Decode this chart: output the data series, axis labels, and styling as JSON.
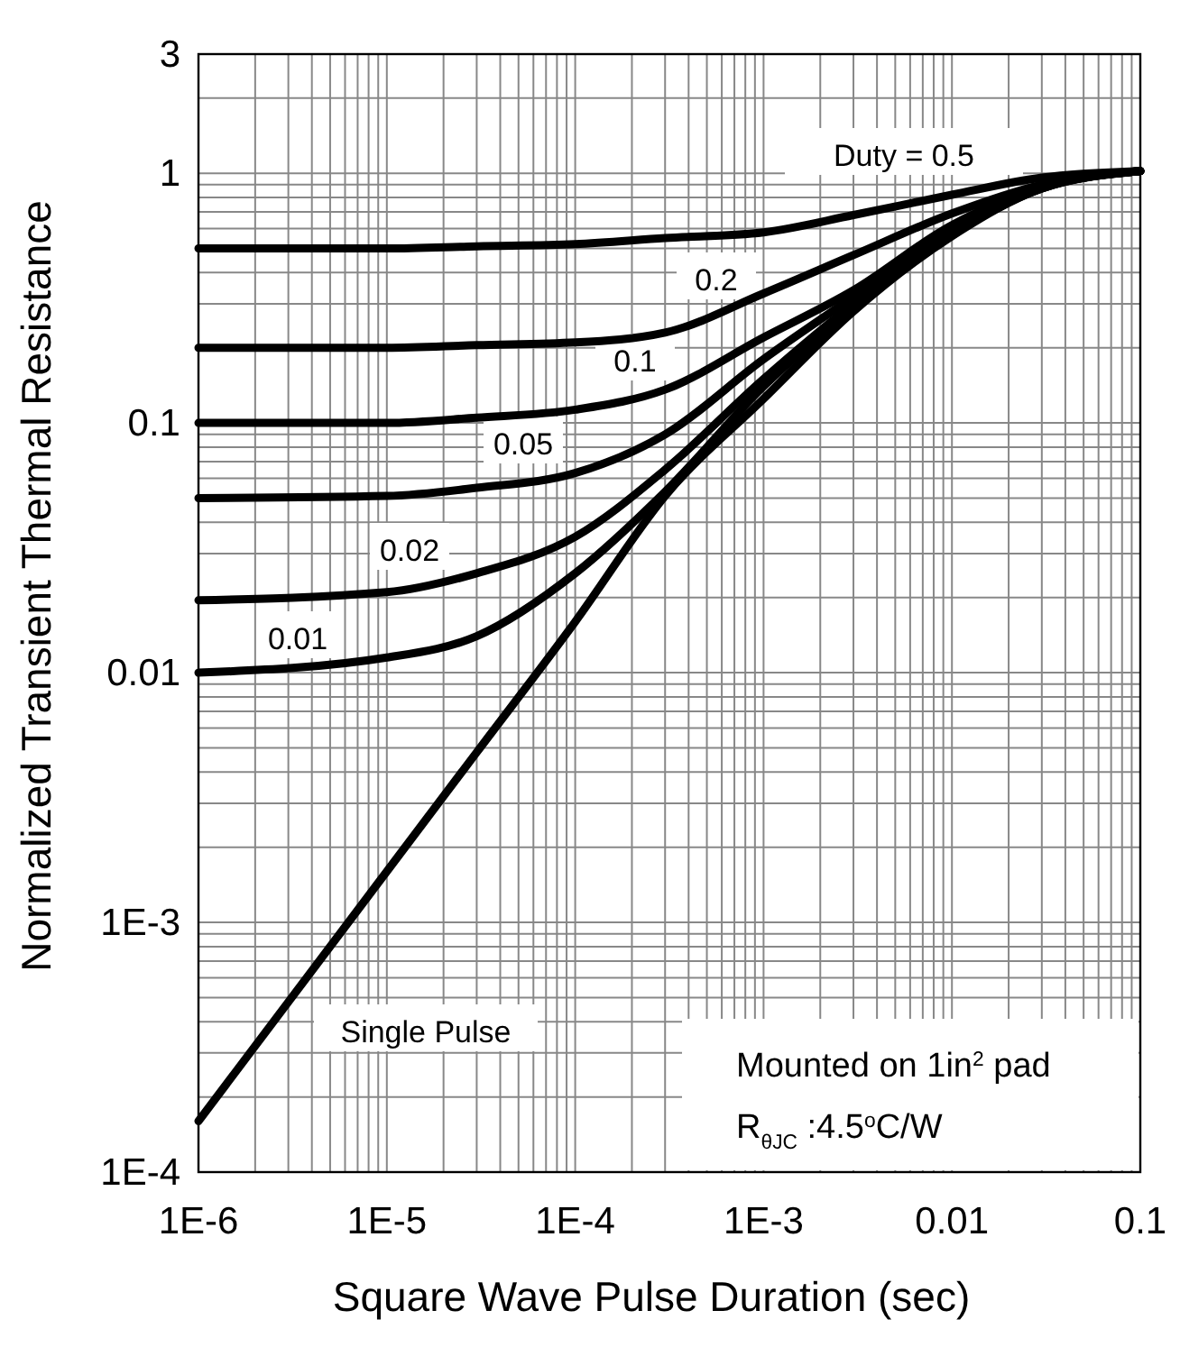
{
  "chart_data": {
    "type": "line",
    "xlabel": "Square Wave Pulse Duration (sec)",
    "ylabel": "Normalized Transient Thermal Resistance",
    "log": "xy",
    "grid": true,
    "line_style": "solid",
    "xlim": [
      1e-06,
      0.1
    ],
    "ylim": [
      0.0001,
      3
    ],
    "xticks": [
      {
        "value": 1e-06,
        "label": "1E-6"
      },
      {
        "value": 2e-06,
        "label": null
      },
      {
        "value": 3e-06,
        "label": null
      },
      {
        "value": 4e-06,
        "label": null
      },
      {
        "value": 5e-06,
        "label": null
      },
      {
        "value": 6e-06,
        "label": null
      },
      {
        "value": 7e-06,
        "label": null
      },
      {
        "value": 8e-06,
        "label": null
      },
      {
        "value": 9e-06,
        "label": null
      },
      {
        "value": 1e-05,
        "label": "1E-5"
      },
      {
        "value": 2e-05,
        "label": null
      },
      {
        "value": 3e-05,
        "label": null
      },
      {
        "value": 4e-05,
        "label": null
      },
      {
        "value": 5e-05,
        "label": null
      },
      {
        "value": 6e-05,
        "label": null
      },
      {
        "value": 7e-05,
        "label": null
      },
      {
        "value": 8e-05,
        "label": null
      },
      {
        "value": 9e-05,
        "label": null
      },
      {
        "value": 0.0001,
        "label": "1E-4"
      },
      {
        "value": 0.0002,
        "label": null
      },
      {
        "value": 0.0003,
        "label": null
      },
      {
        "value": 0.0004,
        "label": null
      },
      {
        "value": 0.0005,
        "label": null
      },
      {
        "value": 0.0006,
        "label": null
      },
      {
        "value": 0.0007,
        "label": null
      },
      {
        "value": 0.0008,
        "label": null
      },
      {
        "value": 0.0009,
        "label": null
      },
      {
        "value": 0.001,
        "label": "1E-3"
      },
      {
        "value": 0.002,
        "label": null
      },
      {
        "value": 0.003,
        "label": null
      },
      {
        "value": 0.004,
        "label": null
      },
      {
        "value": 0.005,
        "label": null
      },
      {
        "value": 0.006,
        "label": null
      },
      {
        "value": 0.007,
        "label": null
      },
      {
        "value": 0.008,
        "label": null
      },
      {
        "value": 0.009,
        "label": null
      },
      {
        "value": 0.01,
        "label": "0.01"
      },
      {
        "value": 0.02,
        "label": null
      },
      {
        "value": 0.03,
        "label": null
      },
      {
        "value": 0.04,
        "label": null
      },
      {
        "value": 0.05,
        "label": null
      },
      {
        "value": 0.06,
        "label": null
      },
      {
        "value": 0.07,
        "label": null
      },
      {
        "value": 0.08,
        "label": null
      },
      {
        "value": 0.09,
        "label": null
      },
      {
        "value": 0.1,
        "label": "0.1"
      }
    ],
    "yticks": [
      {
        "value": 0.0001,
        "label": "1E-4"
      },
      {
        "value": 0.0002,
        "label": null
      },
      {
        "value": 0.0003,
        "label": null
      },
      {
        "value": 0.0004,
        "label": null
      },
      {
        "value": 0.0005,
        "label": null
      },
      {
        "value": 0.0006,
        "label": null
      },
      {
        "value": 0.0007,
        "label": null
      },
      {
        "value": 0.0008,
        "label": null
      },
      {
        "value": 0.0009,
        "label": null
      },
      {
        "value": 0.001,
        "label": "1E-3"
      },
      {
        "value": 0.002,
        "label": null
      },
      {
        "value": 0.003,
        "label": null
      },
      {
        "value": 0.004,
        "label": null
      },
      {
        "value": 0.005,
        "label": null
      },
      {
        "value": 0.006,
        "label": null
      },
      {
        "value": 0.007,
        "label": null
      },
      {
        "value": 0.008,
        "label": null
      },
      {
        "value": 0.009,
        "label": null
      },
      {
        "value": 0.01,
        "label": "0.01"
      },
      {
        "value": 0.02,
        "label": null
      },
      {
        "value": 0.03,
        "label": null
      },
      {
        "value": 0.04,
        "label": null
      },
      {
        "value": 0.05,
        "label": null
      },
      {
        "value": 0.06,
        "label": null
      },
      {
        "value": 0.07,
        "label": null
      },
      {
        "value": 0.08,
        "label": null
      },
      {
        "value": 0.09,
        "label": null
      },
      {
        "value": 0.1,
        "label": "0.1"
      },
      {
        "value": 0.2,
        "label": null
      },
      {
        "value": 0.3,
        "label": null
      },
      {
        "value": 0.4,
        "label": null
      },
      {
        "value": 0.5,
        "label": null
      },
      {
        "value": 0.6,
        "label": null
      },
      {
        "value": 0.7,
        "label": null
      },
      {
        "value": 0.8,
        "label": null
      },
      {
        "value": 0.9,
        "label": null
      },
      {
        "value": 1,
        "label": "1"
      },
      {
        "value": 2,
        "label": null
      },
      {
        "value": 3,
        "label": "3"
      }
    ],
    "x": [
      1e-06,
      1e-05,
      3e-05,
      0.0001,
      0.0003,
      0.001,
      0.003,
      0.01,
      0.03,
      0.1
    ],
    "series": [
      {
        "name": "Duty = 0.5",
        "color": "#000000",
        "values": [
          0.5,
          0.5,
          0.51,
          0.52,
          0.55,
          0.58,
          0.68,
          0.82,
          0.96,
          1.02
        ]
      },
      {
        "name": "0.2",
        "color": "#000000",
        "values": [
          0.2,
          0.2,
          0.205,
          0.21,
          0.23,
          0.33,
          0.47,
          0.69,
          0.9,
          1.02
        ]
      },
      {
        "name": "0.1",
        "color": "#000000",
        "values": [
          0.1,
          0.1,
          0.105,
          0.113,
          0.136,
          0.22,
          0.34,
          0.62,
          0.88,
          1.02
        ]
      },
      {
        "name": "0.05",
        "color": "#000000",
        "values": [
          0.05,
          0.051,
          0.055,
          0.063,
          0.09,
          0.18,
          0.32,
          0.6,
          0.88,
          1.02
        ]
      },
      {
        "name": "0.02",
        "color": "#000000",
        "values": [
          0.0195,
          0.021,
          0.025,
          0.035,
          0.065,
          0.15,
          0.3,
          0.58,
          0.87,
          1.02
        ]
      },
      {
        "name": "0.01",
        "color": "#000000",
        "values": [
          0.01,
          0.0115,
          0.014,
          0.025,
          0.053,
          0.14,
          0.29,
          0.57,
          0.87,
          1.02
        ]
      },
      {
        "name": "Single Pulse",
        "color": "#000000",
        "values": [
          0.00016,
          0.0016,
          0.0048,
          0.016,
          0.051,
          0.125,
          0.28,
          0.56,
          0.87,
          1.02
        ]
      }
    ],
    "annotations": [
      "Mounted on 1in$^{2}$ pad",
      "R$_{θJC}$ :4.5$^{o}$C/W"
    ]
  }
}
